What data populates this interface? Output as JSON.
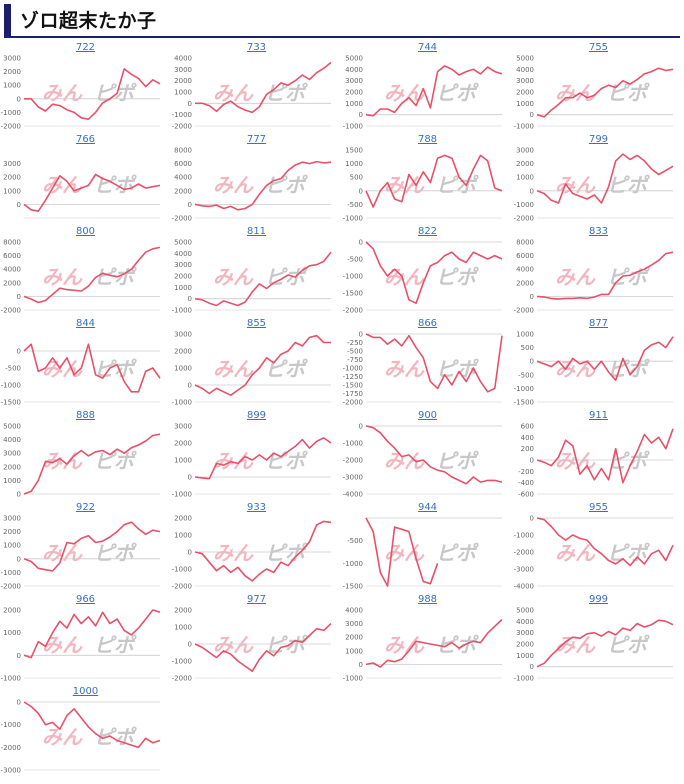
{
  "page": {
    "title": "ゾロ超末たか子"
  },
  "colors": {
    "line": "#e8506a",
    "accent": "#1b1f6b",
    "link": "#3a6fc4",
    "zero_line": "#cccccc"
  },
  "watermark": {
    "text_a": "みん",
    "text_b": "ピポ"
  },
  "chart_data": [
    {
      "type": "line",
      "title": "722",
      "ylim": [
        -2000,
        3000
      ],
      "yticks": [
        3000,
        2000,
        1000,
        0,
        -1000,
        -2000
      ],
      "y": [
        0,
        0,
        -600,
        -900,
        -400,
        -500,
        -800,
        -1000,
        -1400,
        -1500,
        -1000,
        -300,
        0,
        400,
        2200,
        1800,
        1500,
        900,
        1400,
        1100
      ]
    },
    {
      "type": "line",
      "title": "733",
      "ylim": [
        -2000,
        4000
      ],
      "yticks": [
        4000,
        3000,
        2000,
        1000,
        0,
        -1000,
        -2000
      ],
      "y": [
        0,
        0,
        -200,
        -700,
        -100,
        200,
        -300,
        -600,
        -800,
        -300,
        800,
        1200,
        1800,
        1600,
        2000,
        2500,
        2100,
        2700,
        3100,
        3600
      ]
    },
    {
      "type": "line",
      "title": "744",
      "ylim": [
        -1000,
        5000
      ],
      "yticks": [
        5000,
        4000,
        3000,
        2000,
        1000,
        0,
        -1000
      ],
      "y": [
        0,
        -100,
        500,
        500,
        200,
        1000,
        1500,
        800,
        2300,
        600,
        3800,
        4300,
        4000,
        3500,
        3800,
        4000,
        3600,
        4200,
        3800,
        3600
      ]
    },
    {
      "type": "line",
      "title": "755",
      "ylim": [
        -1000,
        5000
      ],
      "yticks": [
        5000,
        4000,
        3000,
        2000,
        1000,
        0,
        -1000
      ],
      "y": [
        0,
        -200,
        400,
        900,
        1500,
        1500,
        1900,
        1500,
        1700,
        2300,
        2600,
        2400,
        3000,
        2700,
        3100,
        3600,
        3800,
        4100,
        3900,
        4000
      ]
    },
    {
      "type": "line",
      "title": "766",
      "ylim": [
        -1000,
        4000
      ],
      "yticks": [
        3000,
        2000,
        1000,
        0
      ],
      "y": [
        0,
        -400,
        -500,
        300,
        1200,
        2100,
        1700,
        1000,
        1200,
        1400,
        2200,
        1900,
        1700,
        1400,
        1100,
        1200,
        1500,
        1200,
        1300,
        1400
      ]
    },
    {
      "type": "line",
      "title": "777",
      "ylim": [
        -2000,
        8000
      ],
      "yticks": [
        8000,
        6000,
        4000,
        2000,
        0,
        -2000
      ],
      "y": [
        0,
        -200,
        -300,
        -100,
        -600,
        -300,
        -800,
        -600,
        0,
        1500,
        2800,
        3500,
        3800,
        5000,
        5800,
        6200,
        6000,
        6300,
        6100,
        6200
      ]
    },
    {
      "type": "line",
      "title": "788",
      "ylim": [
        -1000,
        1500
      ],
      "yticks": [
        1500,
        1000,
        500,
        0,
        -500,
        -1000
      ],
      "y": [
        0,
        -600,
        0,
        300,
        -300,
        -400,
        600,
        200,
        700,
        300,
        1200,
        1300,
        1200,
        500,
        200,
        800,
        1300,
        1100,
        100,
        0
      ]
    },
    {
      "type": "line",
      "title": "799",
      "ylim": [
        -2000,
        3000
      ],
      "yticks": [
        3000,
        2000,
        1000,
        0,
        -1000,
        -2000
      ],
      "y": [
        0,
        -200,
        -700,
        -900,
        500,
        -200,
        -400,
        -600,
        -300,
        -900,
        300,
        2200,
        2700,
        2300,
        2600,
        2200,
        1600,
        1200,
        1500,
        1800
      ]
    },
    {
      "type": "line",
      "title": "800",
      "ylim": [
        -2000,
        8000
      ],
      "yticks": [
        8000,
        6000,
        4000,
        2000,
        0,
        -2000
      ],
      "y": [
        0,
        -400,
        -900,
        -600,
        300,
        1200,
        1000,
        900,
        800,
        1500,
        2800,
        3400,
        3100,
        2900,
        3300,
        4000,
        5300,
        6500,
        7000,
        7200
      ]
    },
    {
      "type": "line",
      "title": "811",
      "ylim": [
        -1000,
        5000
      ],
      "yticks": [
        5000,
        4000,
        3000,
        2000,
        1000,
        0,
        -1000
      ],
      "y": [
        0,
        -100,
        -400,
        -600,
        -200,
        -400,
        -600,
        -300,
        600,
        1300,
        900,
        1400,
        1700,
        2100,
        1900,
        2500,
        2900,
        3000,
        3300,
        4100
      ]
    },
    {
      "type": "line",
      "title": "822",
      "ylim": [
        -2000,
        0
      ],
      "yticks": [
        0,
        -500,
        -1000,
        -1500,
        -2000
      ],
      "y": [
        0,
        -200,
        -700,
        -1000,
        -800,
        -1000,
        -1700,
        -1800,
        -1200,
        -700,
        -600,
        -400,
        -300,
        -500,
        -600,
        -300,
        -400,
        -500,
        -400,
        -500
      ]
    },
    {
      "type": "line",
      "title": "833",
      "ylim": [
        -2000,
        8000
      ],
      "yticks": [
        8000,
        6000,
        4000,
        2000,
        0,
        -2000
      ],
      "y": [
        0,
        -100,
        -300,
        -400,
        -300,
        -300,
        -200,
        -300,
        -100,
        300,
        300,
        2000,
        3000,
        3100,
        3600,
        4000,
        4600,
        5300,
        6300,
        6500
      ]
    },
    {
      "type": "line",
      "title": "844",
      "ylim": [
        -1500,
        500
      ],
      "yticks": [
        0,
        -500,
        -1000,
        -1500
      ],
      "y": [
        0,
        200,
        -600,
        -500,
        -200,
        -500,
        -200,
        -700,
        -500,
        200,
        -700,
        -800,
        -500,
        -400,
        -900,
        -1200,
        -1200,
        -600,
        -500,
        -800
      ]
    },
    {
      "type": "line",
      "title": "855",
      "ylim": [
        -1000,
        3000
      ],
      "yticks": [
        3000,
        2000,
        1000,
        0,
        -1000
      ],
      "y": [
        0,
        -200,
        -500,
        -200,
        -400,
        -600,
        -300,
        0,
        600,
        1000,
        1600,
        1300,
        1800,
        2000,
        2500,
        2300,
        2800,
        2900,
        2500,
        2500
      ]
    },
    {
      "type": "line",
      "title": "866",
      "ylim": [
        -2000,
        0
      ],
      "yticks": [
        0,
        -250,
        -500,
        -750,
        -1000,
        -1250,
        -1500,
        -1750,
        -2000
      ],
      "y": [
        0,
        -100,
        -100,
        -300,
        -150,
        -350,
        -50,
        -400,
        -700,
        -1400,
        -1600,
        -1200,
        -1500,
        -1100,
        -1400,
        -1000,
        -1400,
        -1700,
        -1600,
        -50
      ]
    },
    {
      "type": "line",
      "title": "877",
      "ylim": [
        -1500,
        1000
      ],
      "yticks": [
        1000,
        500,
        0,
        -500,
        -1000,
        -1500
      ],
      "y": [
        0,
        -100,
        -200,
        0,
        -300,
        100,
        -100,
        0,
        -300,
        0,
        -400,
        -700,
        100,
        -500,
        -200,
        400,
        600,
        700,
        500,
        900
      ]
    },
    {
      "type": "line",
      "title": "888",
      "ylim": [
        0,
        5000
      ],
      "yticks": [
        5000,
        4000,
        3000,
        2000,
        1000,
        0
      ],
      "y": [
        0,
        200,
        1000,
        2400,
        2300,
        2600,
        2200,
        2800,
        3200,
        2800,
        3100,
        3200,
        2900,
        3300,
        3000,
        3400,
        3600,
        3900,
        4300,
        4400
      ]
    },
    {
      "type": "line",
      "title": "899",
      "ylim": [
        -1000,
        3000
      ],
      "yticks": [
        3000,
        2000,
        1000,
        0,
        -1000
      ],
      "y": [
        0,
        -50,
        -100,
        800,
        700,
        900,
        800,
        1200,
        1000,
        1300,
        1000,
        1400,
        1200,
        1500,
        1800,
        2200,
        1700,
        2100,
        2300,
        2000
      ]
    },
    {
      "type": "line",
      "title": "900",
      "ylim": [
        -4000,
        0
      ],
      "yticks": [
        0,
        -1000,
        -2000,
        -3000,
        -4000
      ],
      "y": [
        0,
        -100,
        -400,
        -900,
        -1300,
        -1800,
        -1700,
        -2100,
        -2000,
        -2400,
        -2600,
        -2700,
        -3000,
        -3200,
        -3400,
        -3000,
        -3300,
        -3200,
        -3200,
        -3300
      ]
    },
    {
      "type": "line",
      "title": "911",
      "ylim": [
        -600,
        600
      ],
      "yticks": [
        600,
        400,
        200,
        0,
        -200,
        -400,
        -600
      ],
      "y": [
        0,
        -40,
        -100,
        50,
        350,
        250,
        -250,
        -100,
        -350,
        -150,
        -350,
        200,
        -400,
        -100,
        150,
        450,
        300,
        400,
        200,
        550
      ]
    },
    {
      "type": "line",
      "title": "922",
      "ylim": [
        -2000,
        3000
      ],
      "yticks": [
        3000,
        2000,
        1000,
        0,
        -1000,
        -2000
      ],
      "y": [
        0,
        -200,
        -700,
        -800,
        -900,
        -300,
        1200,
        1100,
        1500,
        1700,
        1200,
        1300,
        1600,
        2000,
        2500,
        2700,
        2200,
        1800,
        2100,
        2000
      ]
    },
    {
      "type": "line",
      "title": "933",
      "ylim": [
        -2000,
        2000
      ],
      "yticks": [
        2000,
        1000,
        0,
        -1000,
        -2000
      ],
      "y": [
        0,
        -100,
        -600,
        -1100,
        -800,
        -1200,
        -900,
        -1400,
        -1700,
        -1300,
        -1000,
        -1200,
        -600,
        -800,
        -300,
        100,
        600,
        1600,
        1800,
        1750
      ]
    },
    {
      "type": "line",
      "title": "944",
      "ylim": [
        -1500,
        0
      ],
      "yticks": [
        -500,
        -1000,
        -1500
      ],
      "y": [
        0,
        -300,
        -1200,
        -1500,
        -200,
        -250,
        -300,
        -900,
        -1400,
        -1450,
        -1000
      ]
    },
    {
      "type": "line",
      "title": "955",
      "ylim": [
        -4000,
        0
      ],
      "yticks": [
        0,
        -1000,
        -2000,
        -3000,
        -4000
      ],
      "y": [
        0,
        -100,
        -500,
        -1000,
        -1300,
        -1000,
        -1200,
        -1300,
        -1800,
        -2100,
        -2500,
        -2700,
        -2400,
        -2800,
        -2300,
        -2700,
        -2100,
        -1900,
        -2500,
        -1600
      ]
    },
    {
      "type": "line",
      "title": "966",
      "ylim": [
        -1000,
        2000
      ],
      "yticks": [
        2000,
        1000,
        0,
        -1000
      ],
      "y": [
        0,
        -100,
        600,
        400,
        1000,
        1500,
        1200,
        1800,
        1400,
        1700,
        1300,
        1900,
        1400,
        1600,
        1100,
        900,
        1200,
        1600,
        2000,
        1900
      ]
    },
    {
      "type": "line",
      "title": "977",
      "ylim": [
        -2000,
        2000
      ],
      "yticks": [
        2000,
        1000,
        0,
        -1000,
        -2000
      ],
      "y": [
        0,
        -200,
        -500,
        -800,
        -400,
        -600,
        -1000,
        -1300,
        -1600,
        -900,
        -400,
        -700,
        -200,
        -100,
        200,
        100,
        500,
        900,
        800,
        1200
      ]
    },
    {
      "type": "line",
      "title": "988",
      "ylim": [
        -1000,
        4000
      ],
      "yticks": [
        4000,
        3000,
        2000,
        1000,
        0,
        -1000
      ],
      "y": [
        0,
        100,
        -200,
        300,
        200,
        400,
        1000,
        1700,
        1600,
        1500,
        1400,
        1300,
        1600,
        1200,
        1500,
        1700,
        1600,
        2300,
        2800,
        3300
      ]
    },
    {
      "type": "line",
      "title": "999",
      "ylim": [
        -1000,
        5000
      ],
      "yticks": [
        5000,
        4000,
        3000,
        2000,
        1000,
        0,
        -1000
      ],
      "y": [
        0,
        300,
        1000,
        1600,
        2200,
        2600,
        2500,
        2900,
        3000,
        2700,
        3100,
        2800,
        3400,
        3200,
        3800,
        3500,
        3700,
        4100,
        4000,
        3700
      ]
    },
    {
      "type": "line",
      "title": "1000",
      "ylim": [
        -3000,
        0
      ],
      "yticks": [
        0,
        -1000,
        -2000,
        -3000
      ],
      "y": [
        0,
        -200,
        -500,
        -1000,
        -900,
        -1200,
        -600,
        -300,
        -700,
        -1100,
        -1400,
        -1600,
        -1500,
        -1700,
        -1800,
        -1900,
        -2000,
        -1600,
        -1800,
        -1700
      ]
    }
  ]
}
